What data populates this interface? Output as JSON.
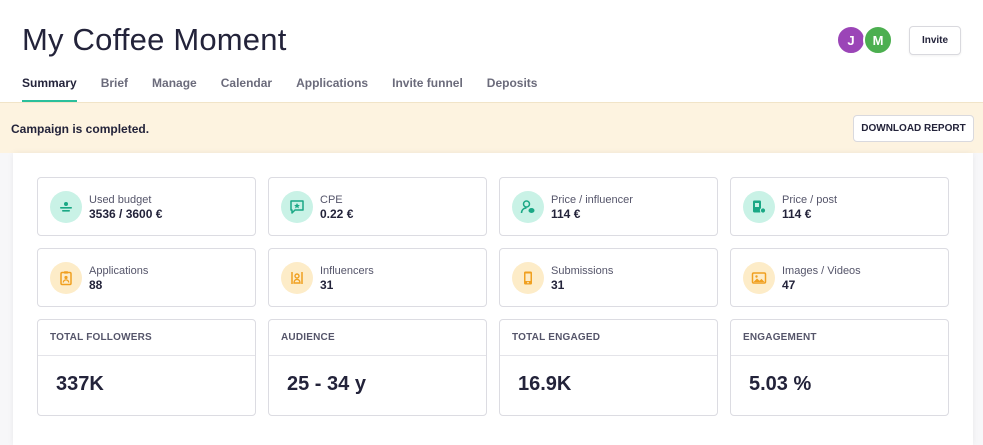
{
  "header": {
    "title": "My Coffee Moment",
    "avatars": [
      {
        "initial": "J",
        "color": "#9b45b7"
      },
      {
        "initial": "M",
        "color": "#4caf50"
      }
    ],
    "invite_label": "Invite"
  },
  "tabs": [
    {
      "label": "Summary",
      "active": true
    },
    {
      "label": "Brief",
      "active": false
    },
    {
      "label": "Manage",
      "active": false
    },
    {
      "label": "Calendar",
      "active": false
    },
    {
      "label": "Applications",
      "active": false
    },
    {
      "label": "Invite funnel",
      "active": false
    },
    {
      "label": "Deposits",
      "active": false
    }
  ],
  "banner": {
    "text": "Campaign is completed.",
    "download_label": "DOWNLOAD REPORT",
    "background": "#fdf3e0"
  },
  "metrics": [
    {
      "label": "Used budget",
      "value": "3536 / 3600 €",
      "icon": "budget-icon",
      "tone": "teal"
    },
    {
      "label": "CPE",
      "value": "0.22 €",
      "icon": "star-chat-icon",
      "tone": "teal"
    },
    {
      "label": "Price / influencer",
      "value": "114 €",
      "icon": "person-coin-icon",
      "tone": "teal"
    },
    {
      "label": "Price / post",
      "value": "114 €",
      "icon": "post-coin-icon",
      "tone": "teal"
    },
    {
      "label": "Applications",
      "value": "88",
      "icon": "clipboard-person-icon",
      "tone": "amber"
    },
    {
      "label": "Influencers",
      "value": "31",
      "icon": "person-frame-icon",
      "tone": "amber"
    },
    {
      "label": "Submissions",
      "value": "31",
      "icon": "phone-icon",
      "tone": "amber"
    },
    {
      "label": "Images / Videos",
      "value": "47",
      "icon": "image-icon",
      "tone": "amber"
    }
  ],
  "stats": [
    {
      "label": "TOTAL FOLLOWERS",
      "value": "337K"
    },
    {
      "label": "AUDIENCE",
      "value": "25 - 34 y"
    },
    {
      "label": "TOTAL ENGAGED",
      "value": "16.9K"
    },
    {
      "label": "ENGAGEMENT",
      "value": "5.03 %"
    }
  ],
  "colors": {
    "accent": "#2bbf9c",
    "teal_icon": "#1aa885",
    "amber_icon": "#f0a020",
    "text": "#23233a"
  }
}
